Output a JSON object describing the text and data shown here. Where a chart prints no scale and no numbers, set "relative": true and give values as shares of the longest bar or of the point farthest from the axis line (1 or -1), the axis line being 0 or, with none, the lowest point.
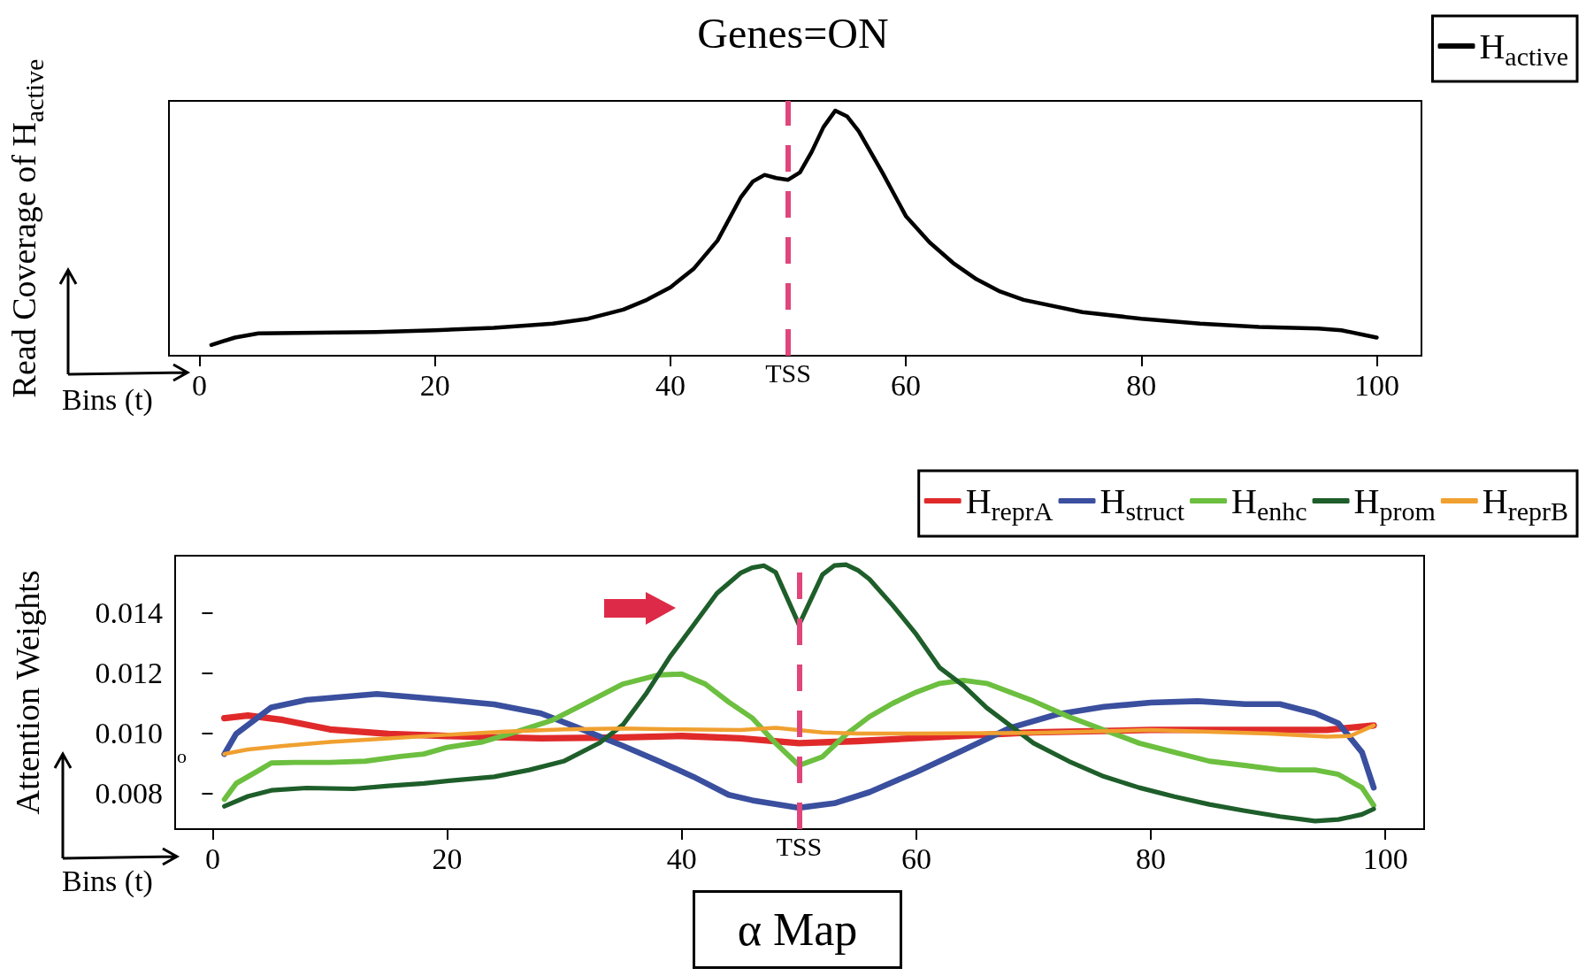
{
  "chart_data": [
    {
      "type": "line",
      "title": "Genes=ON",
      "ylabel": "Read Coverage of H$_{active}$",
      "xlabel": "Bins (t)",
      "relative": true,
      "xlim": [
        -2.6,
        103.8
      ],
      "xticks": [
        0,
        20,
        40,
        60,
        80,
        100
      ],
      "tick_labels": "x",
      "grid": false,
      "legend": "top right",
      "marker": "none",
      "line_style": "solid",
      "ref_lines": [
        {
          "axis": "x",
          "value": 50,
          "label": "TSS",
          "color": "#e0457b",
          "line_style": "dashed"
        }
      ],
      "series": [
        {
          "name": "H$_{active}$",
          "color": "#000000",
          "x": [
            1,
            3,
            5,
            10,
            15,
            20,
            25,
            30,
            33,
            36,
            38,
            40,
            42,
            44,
            46,
            47,
            48,
            49,
            50,
            51,
            52,
            53,
            54,
            55,
            56,
            58,
            60,
            62,
            64,
            66,
            68,
            70,
            75,
            80,
            85,
            90,
            95,
            97,
            99,
            100
          ],
          "values": [
            0.044,
            0.074,
            0.091,
            0.094,
            0.097,
            0.104,
            0.114,
            0.131,
            0.151,
            0.188,
            0.228,
            0.279,
            0.356,
            0.47,
            0.648,
            0.711,
            0.738,
            0.725,
            0.718,
            0.748,
            0.832,
            0.933,
            1.0,
            0.977,
            0.916,
            0.748,
            0.57,
            0.463,
            0.379,
            0.312,
            0.262,
            0.228,
            0.178,
            0.151,
            0.131,
            0.117,
            0.111,
            0.104,
            0.084,
            0.074
          ]
        }
      ]
    },
    {
      "type": "line",
      "ylabel": "Attention Weights",
      "xlabel": "Bins (t)",
      "xlim": [
        -3.2,
        103.3
      ],
      "ylim": [
        0.0068,
        0.0159
      ],
      "xticks": [
        0,
        20,
        40,
        60,
        80,
        100
      ],
      "yticks": [
        0.008,
        {
          "value": 0.01,
          "label": "0.010"
        },
        0.012,
        0.014
      ],
      "grid": false,
      "legend": "top right",
      "marker": "none",
      "line_style": "solid",
      "annotations": [
        "o",
        "α Map"
      ],
      "ref_lines": [
        {
          "axis": "x",
          "value": 50,
          "label": "TSS",
          "color": "#e0457b",
          "line_style": "dashed"
        }
      ],
      "series": [
        {
          "name": "H$_{reprA}$",
          "color": "#e02a2a",
          "x": [
            1,
            3,
            6,
            10,
            15,
            20,
            28,
            35,
            40,
            45,
            50,
            55,
            60,
            70,
            80,
            90,
            95,
            99
          ],
          "values": [
            0.01049,
            0.01058,
            0.01043,
            0.01012,
            0.00997,
            0.0099,
            0.00982,
            0.00985,
            0.0099,
            0.00982,
            0.00966,
            0.00973,
            0.00983,
            0.01002,
            0.0101,
            0.0101,
            0.0101,
            0.01025
          ]
        },
        {
          "name": "H$_{struct}$",
          "color": "#3a4f9e",
          "x": [
            1,
            2,
            5,
            8,
            14,
            20,
            24,
            28,
            31,
            35,
            38,
            41,
            44,
            46,
            50,
            53,
            56,
            60,
            64,
            68,
            72,
            76,
            80,
            84,
            88,
            91,
            94,
            96,
            98,
            99
          ],
          "values": [
            0.0093,
            0.00997,
            0.01085,
            0.0111,
            0.0113,
            0.0111,
            0.01095,
            0.01065,
            0.0102,
            0.00957,
            0.00907,
            0.00854,
            0.00794,
            0.00776,
            0.00751,
            0.00766,
            0.00803,
            0.0087,
            0.00943,
            0.01017,
            0.01062,
            0.01087,
            0.01101,
            0.01106,
            0.01096,
            0.01096,
            0.01066,
            0.01032,
            0.00936,
            0.00818
          ]
        },
        {
          "name": "H$_{enhc}$",
          "color": "#6cbf3f",
          "x": [
            1,
            2,
            4,
            5,
            7,
            10,
            13,
            16,
            18,
            20,
            23,
            26,
            29,
            32,
            35,
            38,
            40,
            42,
            44,
            46,
            48,
            50,
            52,
            54,
            56,
            58,
            60,
            62,
            64,
            66,
            68,
            70,
            73,
            76,
            79,
            82,
            85,
            88,
            91,
            94,
            96,
            98,
            99
          ],
          "values": [
            0.00779,
            0.00832,
            0.00877,
            0.009,
            0.00902,
            0.00902,
            0.00906,
            0.00922,
            0.0093,
            0.00952,
            0.0097,
            0.01005,
            0.01043,
            0.01103,
            0.01163,
            0.01193,
            0.01196,
            0.01163,
            0.01103,
            0.0105,
            0.00966,
            0.00892,
            0.00921,
            0.00995,
            0.01054,
            0.01099,
            0.01136,
            0.01165,
            0.01175,
            0.01165,
            0.01136,
            0.01106,
            0.01054,
            0.0101,
            0.00966,
            0.00936,
            0.00906,
            0.00892,
            0.00877,
            0.00877,
            0.00862,
            0.00818,
            0.00759
          ]
        },
        {
          "name": "H$_{prom}$",
          "color": "#1e5e2a",
          "x": [
            1,
            3,
            5,
            8,
            12,
            15,
            18,
            21,
            24,
            27,
            30,
            33,
            35,
            37,
            39,
            41,
            43,
            45,
            46,
            47,
            48,
            50,
            52,
            53,
            54,
            55,
            56,
            58,
            60,
            62,
            64,
            66,
            68,
            70,
            73,
            76,
            79,
            82,
            85,
            88,
            91,
            94,
            96,
            98,
            99
          ],
          "values": [
            0.00756,
            0.00789,
            0.00809,
            0.00817,
            0.00814,
            0.00824,
            0.00832,
            0.00844,
            0.00854,
            0.00877,
            0.00907,
            0.00967,
            0.01028,
            0.01133,
            0.01254,
            0.01359,
            0.01465,
            0.01532,
            0.0155,
            0.01557,
            0.01535,
            0.0136,
            0.01527,
            0.01557,
            0.0156,
            0.01542,
            0.01512,
            0.01424,
            0.01328,
            0.01217,
            0.01158,
            0.01084,
            0.01025,
            0.00966,
            0.00906,
            0.00855,
            0.00818,
            0.00788,
            0.00762,
            0.00741,
            0.00722,
            0.00707,
            0.00712,
            0.00729,
            0.00747
          ]
        },
        {
          "name": "H$_{reprB}$",
          "color": "#f0a030",
          "x": [
            1,
            3,
            6,
            10,
            15,
            20,
            25,
            30,
            35,
            40,
            45,
            48,
            52,
            55,
            60,
            70,
            80,
            90,
            95,
            97,
            99
          ],
          "values": [
            0.0093,
            0.00945,
            0.00957,
            0.0097,
            0.00982,
            0.00994,
            0.01005,
            0.01012,
            0.01015,
            0.01012,
            0.0101,
            0.01017,
            0.01002,
            0.00998,
            0.00998,
            0.01,
            0.0101,
            0.00998,
            0.00988,
            0.0099,
            0.01025
          ]
        }
      ]
    }
  ]
}
